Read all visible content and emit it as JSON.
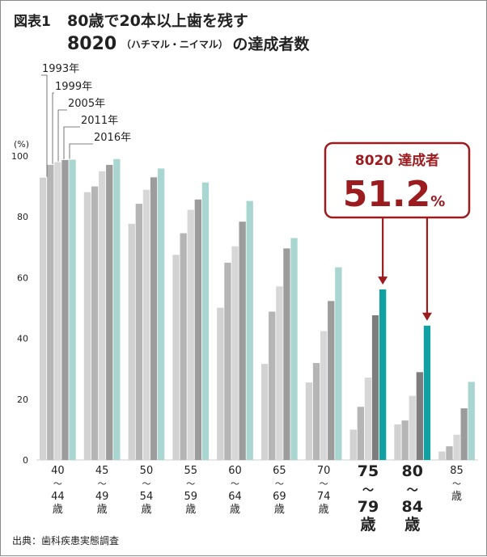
{
  "figure_label": "図表1",
  "title_line1": "80歳で20本以上歯を残す",
  "title_line2_main": "8020",
  "title_line2_small": "（ハチマル・ニイマル）",
  "title_line2_tail": "の達成者数",
  "source": "出典：歯科疾患実態調査",
  "callout": {
    "label": "8020 達成者",
    "value": "51.2",
    "unit": "%"
  },
  "colors": {
    "s1993": "#d2d2d2",
    "s1999": "#b5b5b5",
    "s2005": "#d7d7d7",
    "s2011": "#9c9c9c",
    "s2016": "#a9d6d1",
    "highlight_dark": "#7d7d7d",
    "highlight_teal": "#12a1a3",
    "callout_red": "#9c1b1f"
  },
  "chart_data": {
    "type": "bar",
    "ylabel": "(%)",
    "ylim": [
      0,
      100
    ],
    "yticks": [
      0,
      20,
      40,
      60,
      80,
      100
    ],
    "grid": false,
    "legend": "top-left",
    "categories": [
      {
        "top": "40",
        "bottom": "44",
        "unit": "歳"
      },
      {
        "top": "45",
        "bottom": "49",
        "unit": "歳"
      },
      {
        "top": "50",
        "bottom": "54",
        "unit": "歳"
      },
      {
        "top": "55",
        "bottom": "59",
        "unit": "歳"
      },
      {
        "top": "60",
        "bottom": "64",
        "unit": "歳"
      },
      {
        "top": "65",
        "bottom": "69",
        "unit": "歳"
      },
      {
        "top": "70",
        "bottom": "74",
        "unit": "歳"
      },
      {
        "top": "75",
        "bottom": "79",
        "unit": "歳"
      },
      {
        "top": "80",
        "bottom": "84",
        "unit": "歳"
      },
      {
        "top": "85",
        "bottom": "",
        "unit": "歳"
      }
    ],
    "range_mark": "～",
    "highlight_categories": [
      7,
      8
    ],
    "series": [
      {
        "name": "1993年",
        "values": [
          92.9,
          88.1,
          77.7,
          67.5,
          50.1,
          31.6,
          25.5,
          10.0,
          11.7,
          2.8
        ]
      },
      {
        "name": "1999年",
        "values": [
          97.1,
          90.0,
          84.3,
          74.6,
          64.9,
          48.8,
          31.9,
          17.5,
          13.0,
          4.5
        ]
      },
      {
        "name": "2005年",
        "values": [
          98.0,
          95.0,
          88.9,
          82.3,
          70.3,
          57.1,
          42.4,
          27.1,
          21.1,
          8.3
        ]
      },
      {
        "name": "2011年",
        "values": [
          98.7,
          97.1,
          93.0,
          85.7,
          78.4,
          69.6,
          52.3,
          47.6,
          28.9,
          17.0
        ]
      },
      {
        "name": "2016年",
        "values": [
          98.8,
          99.0,
          95.9,
          91.3,
          85.2,
          73.0,
          63.4,
          56.1,
          44.2,
          25.7
        ]
      }
    ]
  }
}
